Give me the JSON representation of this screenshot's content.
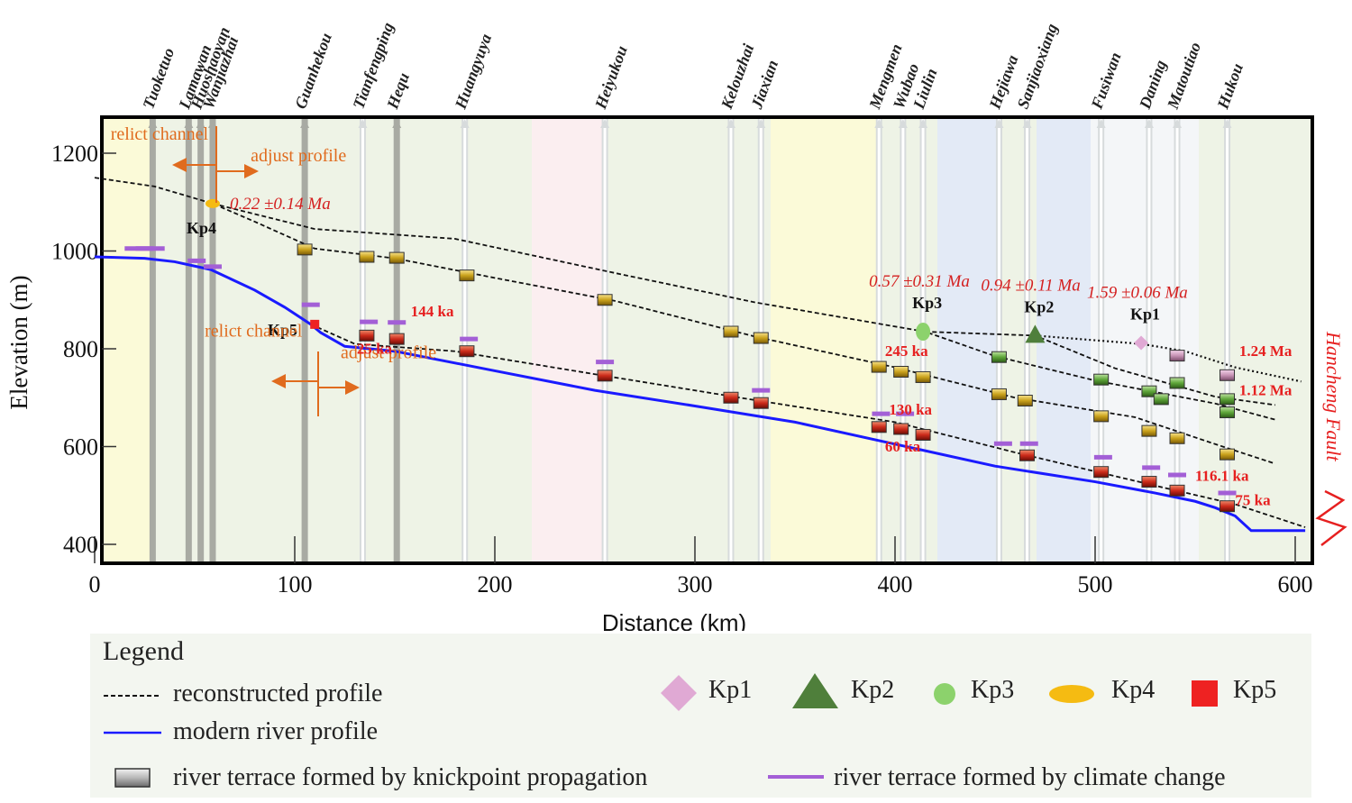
{
  "chart_data": {
    "type": "line",
    "title": "",
    "xlabel": "Distance (km)",
    "ylabel": "Elevation (m)",
    "xlim": [
      0,
      605
    ],
    "ylim": [
      385,
      1270
    ],
    "xticks": [
      0,
      100,
      200,
      300,
      400,
      500,
      600
    ],
    "yticks": [
      400,
      600,
      800,
      1000,
      1200
    ],
    "stations": [
      {
        "name": "Tuoketuo",
        "x": 29,
        "gray": true
      },
      {
        "name": "Lamawan",
        "x": 47,
        "gray": true
      },
      {
        "name": "Huoshaoyan",
        "x": 53,
        "gray": true
      },
      {
        "name": "Wanjiazhai",
        "x": 59,
        "gray": true
      },
      {
        "name": "Guanhekou",
        "x": 105,
        "gray": true
      },
      {
        "name": "Tianfengping",
        "x": 134,
        "gray": false
      },
      {
        "name": "Hequ",
        "x": 151,
        "gray": true
      },
      {
        "name": "Huangyuya",
        "x": 185,
        "gray": false
      },
      {
        "name": "Heiyukou",
        "x": 255,
        "gray": false
      },
      {
        "name": "Kelouzhai",
        "x": 318,
        "gray": false
      },
      {
        "name": "Jiaxian",
        "x": 333,
        "gray": false
      },
      {
        "name": "Mengmen",
        "x": 392,
        "gray": false
      },
      {
        "name": "Wubao",
        "x": 404,
        "gray": false
      },
      {
        "name": "Liulin",
        "x": 414,
        "gray": false
      },
      {
        "name": "Hejiawa",
        "x": 452,
        "gray": false
      },
      {
        "name": "Sanjiaoxiang",
        "x": 466,
        "gray": false
      },
      {
        "name": "Fusiwan",
        "x": 503,
        "gray": false
      },
      {
        "name": "Daning",
        "x": 527,
        "gray": false
      },
      {
        "name": "Matoutiao",
        "x": 541,
        "gray": false
      },
      {
        "name": "Hukou",
        "x": 566,
        "gray": false
      }
    ],
    "series": [
      {
        "name": "modern river profile",
        "style": "blue-solid",
        "x": [
          0,
          25,
          40,
          58,
          80,
          95,
          108,
          113,
          125,
          150,
          200,
          250,
          300,
          350,
          400,
          450,
          500,
          530,
          550,
          560,
          570,
          578,
          605
        ],
        "y": [
          988,
          985,
          978,
          962,
          920,
          885,
          850,
          833,
          805,
          795,
          755,
          715,
          683,
          650,
          605,
          560,
          528,
          505,
          488,
          475,
          458,
          428,
          428
        ]
      },
      {
        "name": "reconstructed profile (Kp5)",
        "style": "dashed",
        "x": [
          108,
          130,
          180,
          250,
          330,
          400,
          460,
          530,
          570,
          605
        ],
        "y": [
          850,
          810,
          795,
          748,
          695,
          650,
          588,
          520,
          482,
          435
        ]
      },
      {
        "name": "reconstructed profile (Kp4)",
        "style": "dashed",
        "x": [
          0,
          30,
          59,
          80,
          110,
          150,
          200,
          260,
          330,
          400,
          460,
          520,
          560,
          590
        ],
        "y": [
          1150,
          1132,
          1097,
          1060,
          1005,
          985,
          945,
          898,
          825,
          762,
          700,
          660,
          605,
          565
        ]
      },
      {
        "name": "reconstructed profile (Kp3)",
        "style": "dashed",
        "x": [
          59,
          110,
          180,
          260,
          330,
          415,
          450,
          500,
          560,
          590
        ],
        "y": [
          1097,
          1045,
          1025,
          955,
          895,
          835,
          785,
          735,
          688,
          655
        ]
      },
      {
        "name": "reconstructed profile (Kp2)",
        "style": "dashed",
        "x": [
          415,
          470,
          510,
          560,
          590
        ],
        "y": [
          835,
          827,
          760,
          702,
          685
        ]
      },
      {
        "name": "reconstructed profile (Kp1)",
        "style": "dotted",
        "x": [
          470,
          523,
          545,
          570,
          603
        ],
        "y": [
          827,
          810,
          795,
          762,
          733
        ]
      }
    ],
    "knickpoints": [
      {
        "name": "Kp1",
        "x": 523,
        "y": 812,
        "age": "1.59 ±0.06 Ma",
        "shape": "diamond",
        "color": "#e0a9d4"
      },
      {
        "name": "Kp2",
        "x": 470,
        "y": 827,
        "age": "0.94 ±0.11 Ma",
        "shape": "triangle",
        "color": "#4f7f3b"
      },
      {
        "name": "Kp3",
        "x": 414,
        "y": 835,
        "age": "0.57 ±0.31 Ma",
        "shape": "circle",
        "color": "#8cd26c"
      },
      {
        "name": "Kp4",
        "x": 59,
        "y": 1097,
        "age": "0.22 ±0.14 Ma",
        "shape": "ellipse",
        "color": "#f5bb12"
      },
      {
        "name": "Kp5",
        "x": 110,
        "y": 850,
        "age": "",
        "shape": "square",
        "color": "#ee2222"
      }
    ],
    "knickpoint_terraces": [
      {
        "x": 105,
        "y": 1003,
        "tier": "Kp4"
      },
      {
        "x": 136,
        "y": 988,
        "tier": "Kp4"
      },
      {
        "x": 151,
        "y": 986,
        "tier": "Kp4"
      },
      {
        "x": 186,
        "y": 950,
        "tier": "Kp4"
      },
      {
        "x": 255,
        "y": 900,
        "tier": "Kp4"
      },
      {
        "x": 318,
        "y": 835,
        "tier": "Kp4"
      },
      {
        "x": 333,
        "y": 822,
        "tier": "Kp4"
      },
      {
        "x": 392,
        "y": 763,
        "tier": "Kp4"
      },
      {
        "x": 403,
        "y": 753,
        "tier": "Kp4"
      },
      {
        "x": 414,
        "y": 742,
        "tier": "Kp4"
      },
      {
        "x": 452,
        "y": 707,
        "tier": "Kp4"
      },
      {
        "x": 465,
        "y": 694,
        "tier": "Kp4"
      },
      {
        "x": 503,
        "y": 662,
        "tier": "Kp4"
      },
      {
        "x": 527,
        "y": 632,
        "tier": "Kp4"
      },
      {
        "x": 541,
        "y": 617,
        "tier": "Kp4"
      },
      {
        "x": 566,
        "y": 584,
        "tier": "Kp4"
      },
      {
        "x": 136,
        "y": 827,
        "tier": "Kp5"
      },
      {
        "x": 151,
        "y": 820,
        "tier": "Kp5"
      },
      {
        "x": 186,
        "y": 795,
        "tier": "Kp5"
      },
      {
        "x": 255,
        "y": 745,
        "tier": "Kp5"
      },
      {
        "x": 318,
        "y": 700,
        "tier": "Kp5"
      },
      {
        "x": 333,
        "y": 689,
        "tier": "Kp5"
      },
      {
        "x": 392,
        "y": 640,
        "tier": "Kp5"
      },
      {
        "x": 403,
        "y": 636,
        "tier": "Kp5"
      },
      {
        "x": 414,
        "y": 624,
        "tier": "Kp5"
      },
      {
        "x": 466,
        "y": 582,
        "tier": "Kp5"
      },
      {
        "x": 503,
        "y": 548,
        "tier": "Kp5"
      },
      {
        "x": 527,
        "y": 528,
        "tier": "Kp5"
      },
      {
        "x": 541,
        "y": 510,
        "tier": "Kp5"
      },
      {
        "x": 566,
        "y": 478,
        "tier": "Kp5"
      },
      {
        "x": 452,
        "y": 783,
        "tier": "Kp3"
      },
      {
        "x": 503,
        "y": 737,
        "tier": "Kp3"
      },
      {
        "x": 527,
        "y": 713,
        "tier": "Kp3"
      },
      {
        "x": 541,
        "y": 730,
        "tier": "Kp3"
      },
      {
        "x": 533,
        "y": 697,
        "tier": "Kp3"
      },
      {
        "x": 566,
        "y": 670,
        "tier": "Kp3"
      },
      {
        "x": 566,
        "y": 697,
        "tier": "Kp2"
      },
      {
        "x": 541,
        "y": 786,
        "tier": "Kp1"
      },
      {
        "x": 566,
        "y": 746,
        "tier": "Kp1"
      }
    ],
    "climate_terraces": [
      {
        "x": 25,
        "y": 1005
      },
      {
        "x": 51,
        "y": 980
      },
      {
        "x": 59,
        "y": 968
      },
      {
        "x": 108,
        "y": 890
      },
      {
        "x": 137,
        "y": 855
      },
      {
        "x": 151,
        "y": 854
      },
      {
        "x": 187,
        "y": 820
      },
      {
        "x": 255,
        "y": 773
      },
      {
        "x": 333,
        "y": 715
      },
      {
        "x": 393,
        "y": 667
      },
      {
        "x": 405,
        "y": 667
      },
      {
        "x": 454,
        "y": 606
      },
      {
        "x": 467,
        "y": 606
      },
      {
        "x": 504,
        "y": 578
      },
      {
        "x": 528,
        "y": 557
      },
      {
        "x": 541,
        "y": 542
      },
      {
        "x": 566,
        "y": 505
      }
    ],
    "annotations": [
      {
        "text": "relict channel",
        "x": 8,
        "y": 1228,
        "color": "#e06b1e"
      },
      {
        "text": "adjust profile",
        "x": 78,
        "y": 1183,
        "color": "#e06b1e"
      },
      {
        "text": "relict channel",
        "x": 55,
        "y": 825,
        "color": "#e06b1e"
      },
      {
        "text": "adjust profile",
        "x": 123,
        "y": 781,
        "color": "#e06b1e"
      },
      {
        "text": "144 ka",
        "x": 158,
        "y": 866,
        "color": "#e62020"
      },
      {
        "text": "25 ka",
        "x": 131,
        "y": 790,
        "color": "#e62020"
      },
      {
        "text": "245 ka",
        "x": 395,
        "y": 785,
        "color": "#e62020"
      },
      {
        "text": "130 ka",
        "x": 397,
        "y": 665,
        "color": "#e62020"
      },
      {
        "text": "60 ka",
        "x": 395,
        "y": 590,
        "color": "#e62020"
      },
      {
        "text": "1.24 Ma",
        "x": 572,
        "y": 785,
        "color": "#e62020"
      },
      {
        "text": "1.12 Ma",
        "x": 572,
        "y": 705,
        "color": "#e62020"
      },
      {
        "text": "116.1 ka",
        "x": 550,
        "y": 530,
        "color": "#e62020"
      },
      {
        "text": "75 ka",
        "x": 570,
        "y": 480,
        "color": "#e62020"
      }
    ],
    "fault_label": "Hancheng Fault"
  },
  "legend": {
    "title": "Legend",
    "reconstructed": "reconstructed profile",
    "modern": "modern river profile",
    "terrace_knickpoint": "river terrace formed by knickpoint propagation",
    "terrace_climate": "river terrace formed by climate change",
    "kp1": "Kp1",
    "kp2": "Kp2",
    "kp3": "Kp3",
    "kp4": "Kp4",
    "kp5": "Kp5"
  }
}
